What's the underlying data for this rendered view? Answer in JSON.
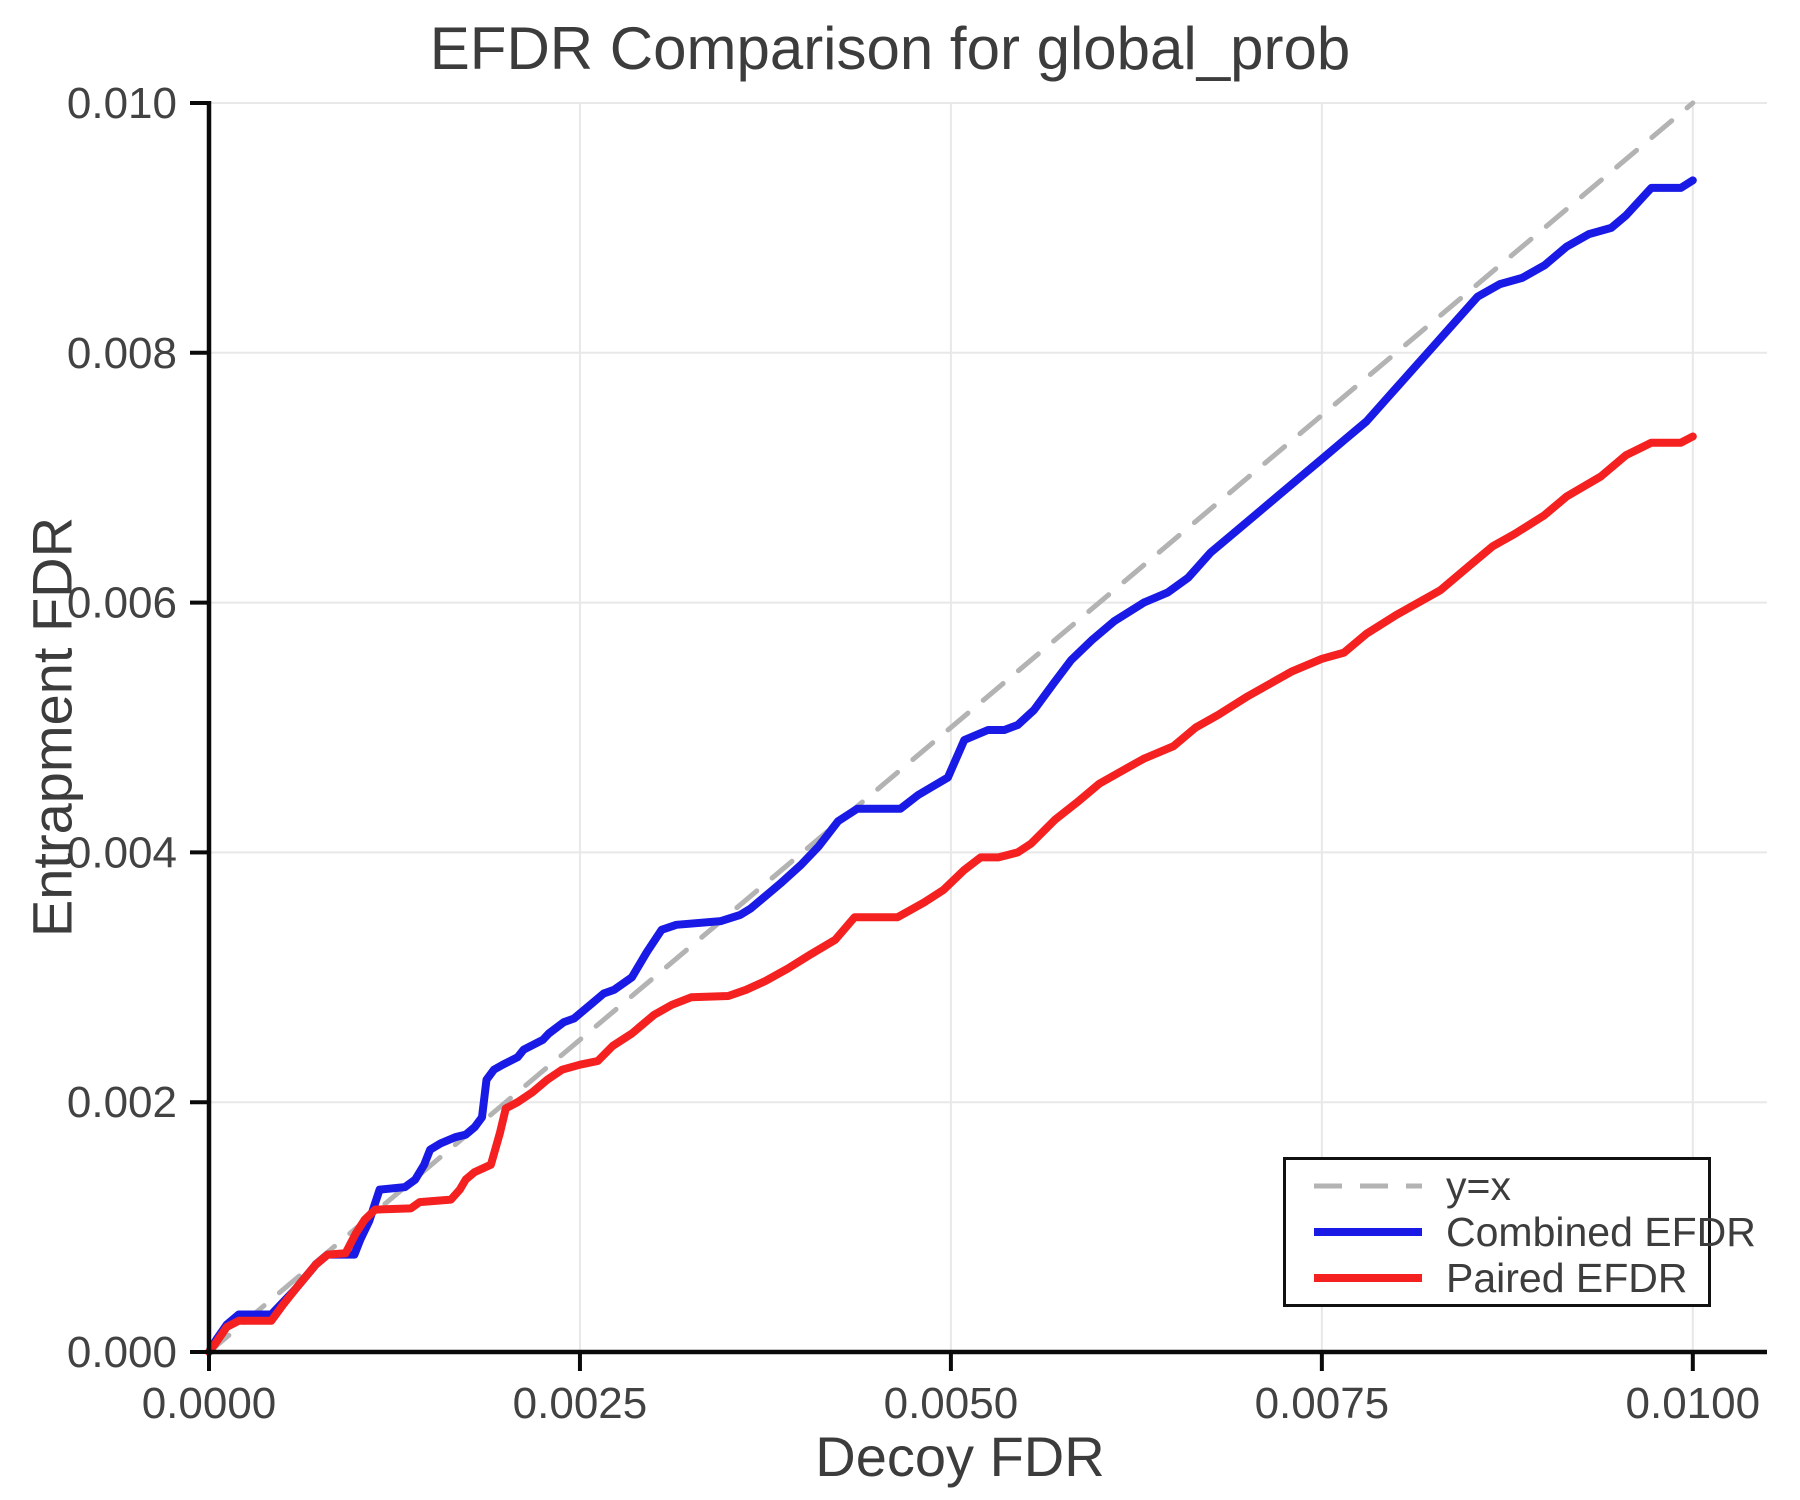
{
  "chart_data": {
    "type": "line",
    "title": "EFDR Comparison for global_prob",
    "xlabel": "Decoy FDR",
    "ylabel": "Entrapment FDR",
    "xlim": [
      0.0,
      0.0105
    ],
    "ylim": [
      0.0,
      0.01
    ],
    "grid": true,
    "x_ticks": {
      "values": [
        0.0,
        0.0025,
        0.005,
        0.0075,
        0.01
      ],
      "labels": [
        "0.0000",
        "0.0025",
        "0.0050",
        "0.0075",
        "0.0100"
      ]
    },
    "y_ticks": {
      "values": [
        0.0,
        0.002,
        0.004,
        0.006,
        0.008,
        0.01
      ],
      "labels": [
        "0.000",
        "0.002",
        "0.004",
        "0.006",
        "0.008",
        "0.010"
      ]
    },
    "colors": {
      "background": "#ffffff",
      "grid": "#e8e8e8",
      "axis": "#0a0a0a",
      "text": "#424242",
      "identity": "#b3b3b3",
      "combined": "#1a1ae6",
      "paired": "#f52020"
    },
    "legend": {
      "position": "bottom-right",
      "entries": [
        {
          "id": "identity",
          "label": "y=x",
          "color": "#b3b3b3",
          "style": "dashed"
        },
        {
          "id": "combined-efdr",
          "label": "Combined EFDR",
          "color": "#1a1ae6",
          "style": "solid"
        },
        {
          "id": "paired-efdr",
          "label": "Paired EFDR",
          "color": "#f52020",
          "style": "solid"
        }
      ]
    },
    "series": [
      {
        "id": "identity",
        "name": "y=x",
        "style": "dashed",
        "color": "#b3b3b3",
        "points": [
          [
            0.0,
            0.0
          ],
          [
            0.01,
            0.01
          ]
        ]
      },
      {
        "id": "combined-efdr",
        "name": "Combined EFDR",
        "style": "solid",
        "color": "#1a1ae6",
        "points": [
          [
            0.0,
            0.0
          ],
          [
            5e-05,
            0.0001
          ],
          [
            0.00012,
            0.00022
          ],
          [
            0.0002,
            0.0003
          ],
          [
            0.00042,
            0.0003
          ],
          [
            0.0005,
            0.0004
          ],
          [
            0.00058,
            0.0005
          ],
          [
            0.00065,
            0.0006
          ],
          [
            0.00072,
            0.0007
          ],
          [
            0.0008,
            0.00078
          ],
          [
            0.00098,
            0.00078
          ],
          [
            0.00102,
            0.0009
          ],
          [
            0.00108,
            0.00105
          ],
          [
            0.00115,
            0.0013
          ],
          [
            0.00132,
            0.00132
          ],
          [
            0.00139,
            0.00138
          ],
          [
            0.00145,
            0.0015
          ],
          [
            0.00149,
            0.00162
          ],
          [
            0.00156,
            0.00167
          ],
          [
            0.00166,
            0.00172
          ],
          [
            0.00173,
            0.00174
          ],
          [
            0.00179,
            0.0018
          ],
          [
            0.00184,
            0.00188
          ],
          [
            0.00187,
            0.00218
          ],
          [
            0.00192,
            0.00226
          ],
          [
            0.00198,
            0.0023
          ],
          [
            0.00208,
            0.00236
          ],
          [
            0.00212,
            0.00242
          ],
          [
            0.00225,
            0.0025
          ],
          [
            0.00229,
            0.00255
          ],
          [
            0.00239,
            0.00264
          ],
          [
            0.00246,
            0.00267
          ],
          [
            0.00259,
            0.0028
          ],
          [
            0.00266,
            0.00287
          ],
          [
            0.00273,
            0.0029
          ],
          [
            0.00285,
            0.003
          ],
          [
            0.00295,
            0.0032
          ],
          [
            0.00305,
            0.00338
          ],
          [
            0.00315,
            0.00342
          ],
          [
            0.00345,
            0.00345
          ],
          [
            0.00358,
            0.0035
          ],
          [
            0.00365,
            0.00355
          ],
          [
            0.00385,
            0.00375
          ],
          [
            0.00399,
            0.0039
          ],
          [
            0.00411,
            0.00405
          ],
          [
            0.00424,
            0.00425
          ],
          [
            0.00437,
            0.00435
          ],
          [
            0.00466,
            0.00435
          ],
          [
            0.00478,
            0.00446
          ],
          [
            0.00488,
            0.00453
          ],
          [
            0.00498,
            0.0046
          ],
          [
            0.00509,
            0.0049
          ],
          [
            0.00525,
            0.00498
          ],
          [
            0.00536,
            0.00498
          ],
          [
            0.00545,
            0.00502
          ],
          [
            0.00556,
            0.00514
          ],
          [
            0.00569,
            0.00535
          ],
          [
            0.00581,
            0.00554
          ],
          [
            0.00595,
            0.0057
          ],
          [
            0.0061,
            0.00585
          ],
          [
            0.0063,
            0.006
          ],
          [
            0.00646,
            0.00608
          ],
          [
            0.0066,
            0.0062
          ],
          [
            0.00675,
            0.0064
          ],
          [
            0.0069,
            0.00655
          ],
          [
            0.00705,
            0.0067
          ],
          [
            0.0072,
            0.00685
          ],
          [
            0.00735,
            0.007
          ],
          [
            0.0075,
            0.00715
          ],
          [
            0.00765,
            0.0073
          ],
          [
            0.0078,
            0.00745
          ],
          [
            0.00795,
            0.00765
          ],
          [
            0.0081,
            0.00785
          ],
          [
            0.00825,
            0.00805
          ],
          [
            0.0084,
            0.00825
          ],
          [
            0.00855,
            0.00845
          ],
          [
            0.0087,
            0.00855
          ],
          [
            0.00885,
            0.0086
          ],
          [
            0.009,
            0.0087
          ],
          [
            0.00915,
            0.00885
          ],
          [
            0.0093,
            0.00895
          ],
          [
            0.00945,
            0.009
          ],
          [
            0.00955,
            0.0091
          ],
          [
            0.00972,
            0.00932
          ],
          [
            0.00992,
            0.00932
          ],
          [
            0.01,
            0.00938
          ]
        ]
      },
      {
        "id": "paired-efdr",
        "name": "Paired EFDR",
        "style": "solid",
        "color": "#f52020",
        "points": [
          [
            0.0,
            0.0
          ],
          [
            5e-05,
            8e-05
          ],
          [
            0.00012,
            0.0002
          ],
          [
            0.0002,
            0.00025
          ],
          [
            0.00042,
            0.00025
          ],
          [
            0.0005,
            0.00038
          ],
          [
            0.00058,
            0.0005
          ],
          [
            0.00065,
            0.0006
          ],
          [
            0.00072,
            0.0007
          ],
          [
            0.0008,
            0.00078
          ],
          [
            0.00092,
            0.00079
          ],
          [
            0.00099,
            0.00095
          ],
          [
            0.00105,
            0.00106
          ],
          [
            0.00112,
            0.00114
          ],
          [
            0.00136,
            0.00115
          ],
          [
            0.00142,
            0.0012
          ],
          [
            0.00163,
            0.00122
          ],
          [
            0.00169,
            0.0013
          ],
          [
            0.00173,
            0.00138
          ],
          [
            0.00179,
            0.00144
          ],
          [
            0.0019,
            0.0015
          ],
          [
            0.00196,
            0.00175
          ],
          [
            0.002,
            0.00195
          ],
          [
            0.00208,
            0.002
          ],
          [
            0.00218,
            0.00208
          ],
          [
            0.00228,
            0.00218
          ],
          [
            0.00238,
            0.00226
          ],
          [
            0.0025,
            0.0023
          ],
          [
            0.00262,
            0.00233
          ],
          [
            0.00272,
            0.00245
          ],
          [
            0.00285,
            0.00255
          ],
          [
            0.003,
            0.0027
          ],
          [
            0.00312,
            0.00278
          ],
          [
            0.00325,
            0.00284
          ],
          [
            0.0035,
            0.00285
          ],
          [
            0.00362,
            0.0029
          ],
          [
            0.00375,
            0.00297
          ],
          [
            0.0039,
            0.00307
          ],
          [
            0.00405,
            0.00318
          ],
          [
            0.00422,
            0.0033
          ],
          [
            0.00435,
            0.00348
          ],
          [
            0.00464,
            0.00348
          ],
          [
            0.00473,
            0.00354
          ],
          [
            0.00482,
            0.0036
          ],
          [
            0.00495,
            0.0037
          ],
          [
            0.00509,
            0.00386
          ],
          [
            0.0052,
            0.00396
          ],
          [
            0.00532,
            0.00396
          ],
          [
            0.00545,
            0.004
          ],
          [
            0.00554,
            0.00407
          ],
          [
            0.0057,
            0.00426
          ],
          [
            0.00585,
            0.0044
          ],
          [
            0.006,
            0.00455
          ],
          [
            0.00615,
            0.00465
          ],
          [
            0.0063,
            0.00475
          ],
          [
            0.0065,
            0.00485
          ],
          [
            0.00665,
            0.005
          ],
          [
            0.0068,
            0.0051
          ],
          [
            0.007,
            0.00525
          ],
          [
            0.00715,
            0.00535
          ],
          [
            0.0073,
            0.00545
          ],
          [
            0.0075,
            0.00555
          ],
          [
            0.00765,
            0.0056
          ],
          [
            0.0078,
            0.00575
          ],
          [
            0.008,
            0.0059
          ],
          [
            0.00815,
            0.006
          ],
          [
            0.0083,
            0.0061
          ],
          [
            0.0085,
            0.0063
          ],
          [
            0.00865,
            0.00645
          ],
          [
            0.0088,
            0.00655
          ],
          [
            0.009,
            0.0067
          ],
          [
            0.00915,
            0.00685
          ],
          [
            0.00938,
            0.00701
          ],
          [
            0.00955,
            0.00718
          ],
          [
            0.00972,
            0.00728
          ],
          [
            0.00992,
            0.00728
          ],
          [
            0.01,
            0.00733
          ]
        ]
      }
    ]
  }
}
